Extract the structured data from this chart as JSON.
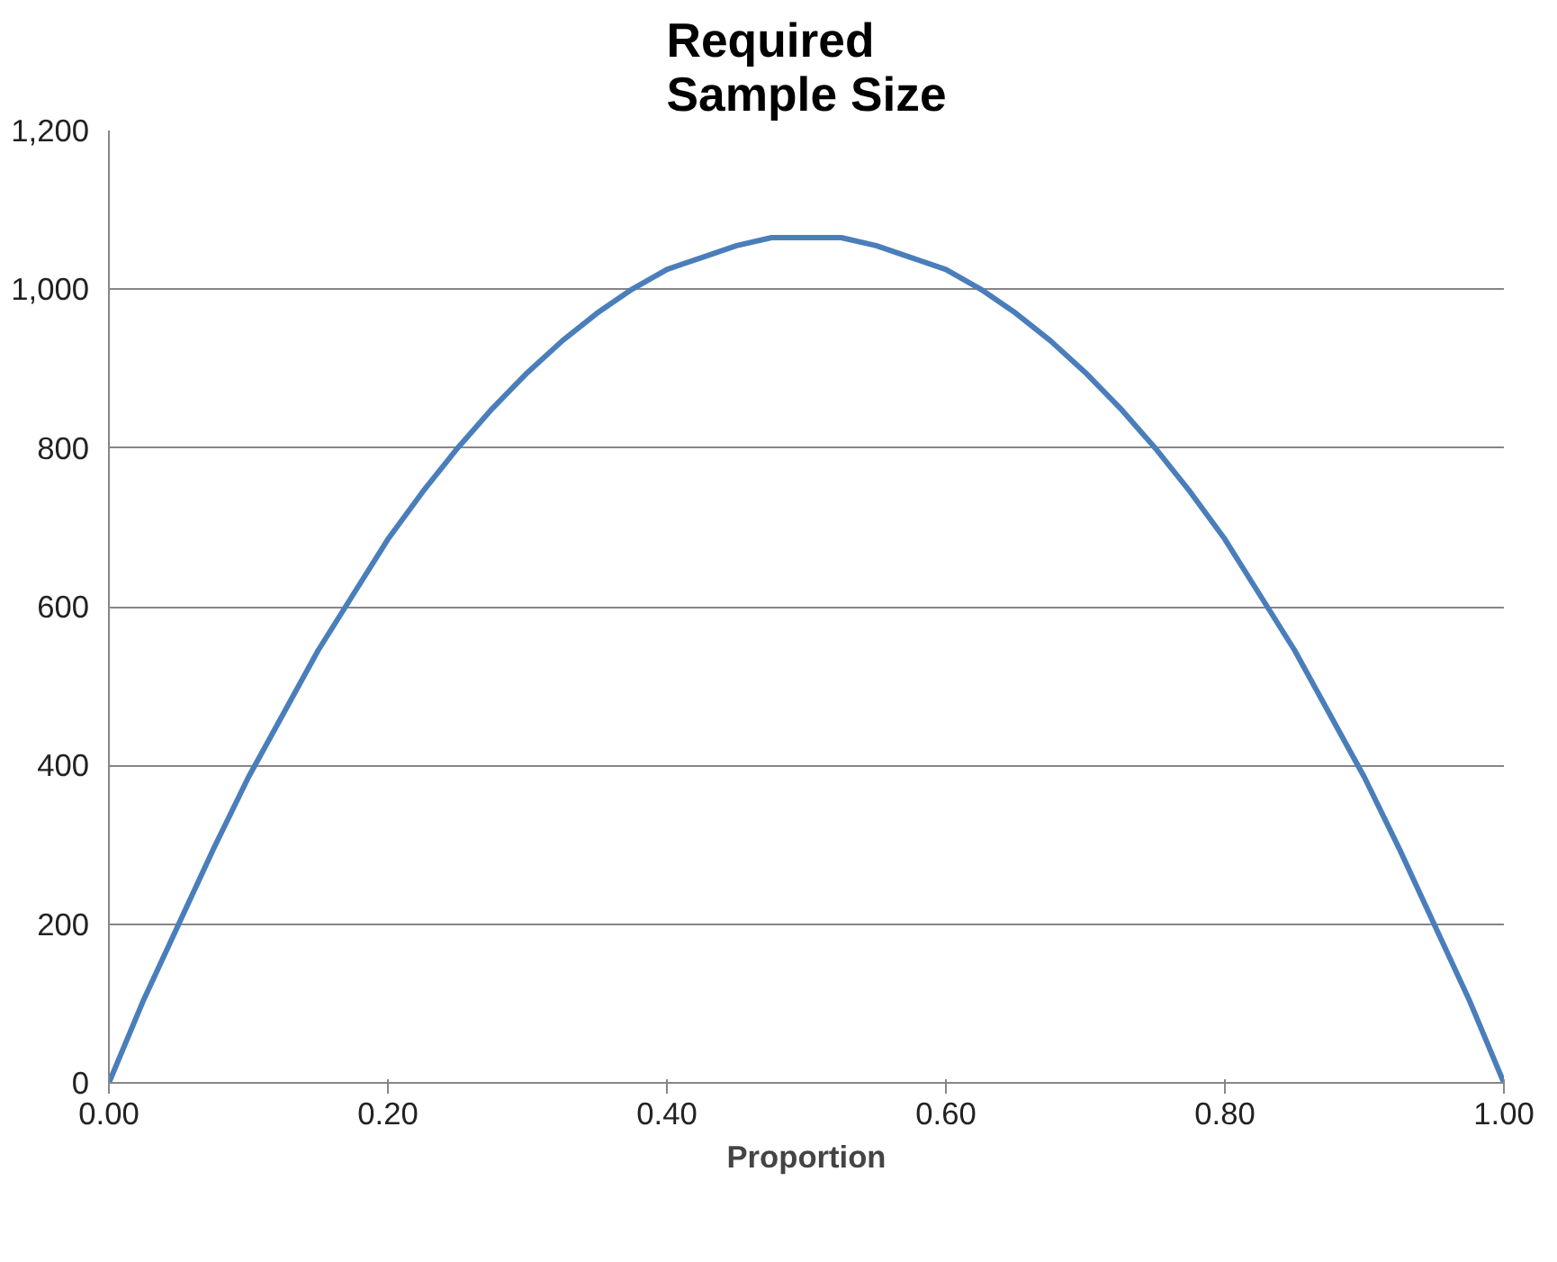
{
  "chart_data": {
    "type": "line",
    "title": "Required\nSample Size",
    "xlabel": "Proportion",
    "x": [
      0,
      0.025,
      0.05,
      0.075,
      0.1,
      0.125,
      0.15,
      0.175,
      0.2,
      0.225,
      0.25,
      0.275,
      0.3,
      0.325,
      0.35,
      0.375,
      0.4,
      0.425,
      0.45,
      0.475,
      0.5,
      0.525,
      0.55,
      0.575,
      0.6,
      0.625,
      0.65,
      0.675,
      0.7,
      0.725,
      0.75,
      0.775,
      0.8,
      0.825,
      0.85,
      0.875,
      0.9,
      0.925,
      0.95,
      0.975,
      1
    ],
    "series": [
      {
        "color": "#4a7ebb",
        "values": [
          0,
          105,
          200,
          295,
          385,
          465,
          545,
          615,
          685,
          745,
          800,
          850,
          895,
          935,
          970,
          1000,
          1025,
          1040,
          1055,
          1065,
          1065,
          1065,
          1055,
          1040,
          1025,
          1000,
          970,
          935,
          895,
          850,
          800,
          745,
          685,
          615,
          545,
          465,
          385,
          295,
          200,
          105,
          0
        ]
      }
    ],
    "xlim": [
      0,
      1
    ],
    "ylim": [
      0,
      1200
    ],
    "xticks": [
      {
        "value": 0,
        "label": "0.00"
      },
      {
        "value": 0.2,
        "label": "0.20"
      },
      {
        "value": 0.4,
        "label": "0.40"
      },
      {
        "value": 0.6,
        "label": "0.60"
      },
      {
        "value": 0.8,
        "label": "0.80"
      },
      {
        "value": 1,
        "label": "1.00"
      }
    ],
    "yticks": [
      0,
      200,
      400,
      600,
      800,
      {
        "value": 1000,
        "label": "1,000"
      },
      {
        "value": 1200,
        "label": "1,200"
      }
    ],
    "grid": "y",
    "marker": "none",
    "line_style": "solid"
  }
}
